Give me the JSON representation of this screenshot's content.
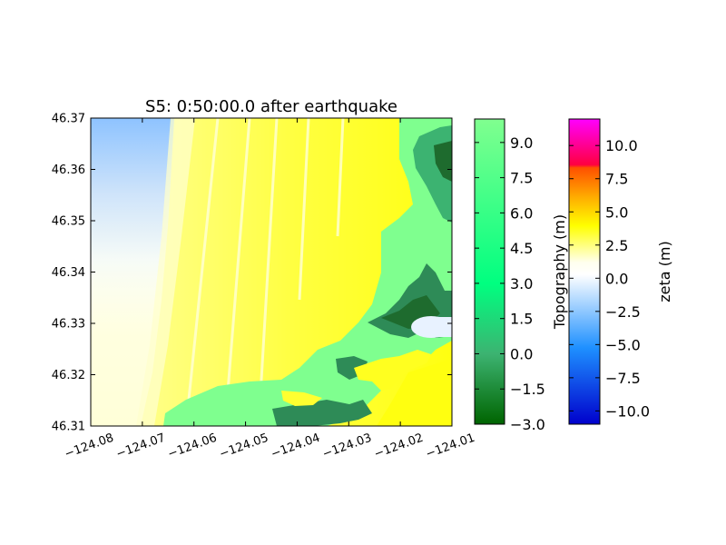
{
  "chart_data": {
    "type": "heatmap",
    "title": "S5: 0:50:00.0 after earthquake",
    "x": {
      "ticks": [
        -124.08,
        -124.07,
        -124.06,
        -124.05,
        -124.04,
        -124.03,
        -124.02,
        -124.01
      ],
      "tick_labels": [
        "−124.08",
        "−124.07",
        "−124.06",
        "−124.05",
        "−124.04",
        "−124.03",
        "−124.02",
        "−124.01"
      ],
      "range": [
        -124.08,
        -124.01
      ]
    },
    "y": {
      "ticks": [
        46.31,
        46.32,
        46.33,
        46.34,
        46.35,
        46.36,
        46.37
      ],
      "tick_labels": [
        "46.31",
        "46.32",
        "46.33",
        "46.34",
        "46.35",
        "46.36",
        "46.37"
      ],
      "range": [
        46.31,
        46.37
      ]
    },
    "colorbars": [
      {
        "label": "Topography (m)",
        "range": [
          -3.0,
          10.0
        ],
        "ticks": [
          9.0,
          7.5,
          6.0,
          4.5,
          3.0,
          1.5,
          0.0,
          -1.5,
          -3.0
        ],
        "tick_labels": [
          "9.0",
          "7.5",
          "6.0",
          "4.5",
          "3.0",
          "1.5",
          "0.0",
          "−1.5",
          "−3.0"
        ],
        "colors": [
          "#006400",
          "#3cb371",
          "#00ff80",
          "#7fff8f"
        ]
      },
      {
        "label": "zeta (m)",
        "range": [
          -11.0,
          12.0
        ],
        "ticks": [
          10.0,
          7.5,
          5.0,
          2.5,
          0.0,
          -2.5,
          -5.0,
          -7.5,
          -10.0
        ],
        "tick_labels": [
          "10.0",
          "7.5",
          "5.0",
          "2.5",
          "0.0",
          "−2.5",
          "−5.0",
          "−7.5",
          "−10.0"
        ],
        "colors": [
          "#0000cc",
          "#1e90ff",
          "#ffffff",
          "#ffff00",
          "#ff8c00",
          "#ff0040",
          "#ff00ff"
        ]
      }
    ]
  }
}
